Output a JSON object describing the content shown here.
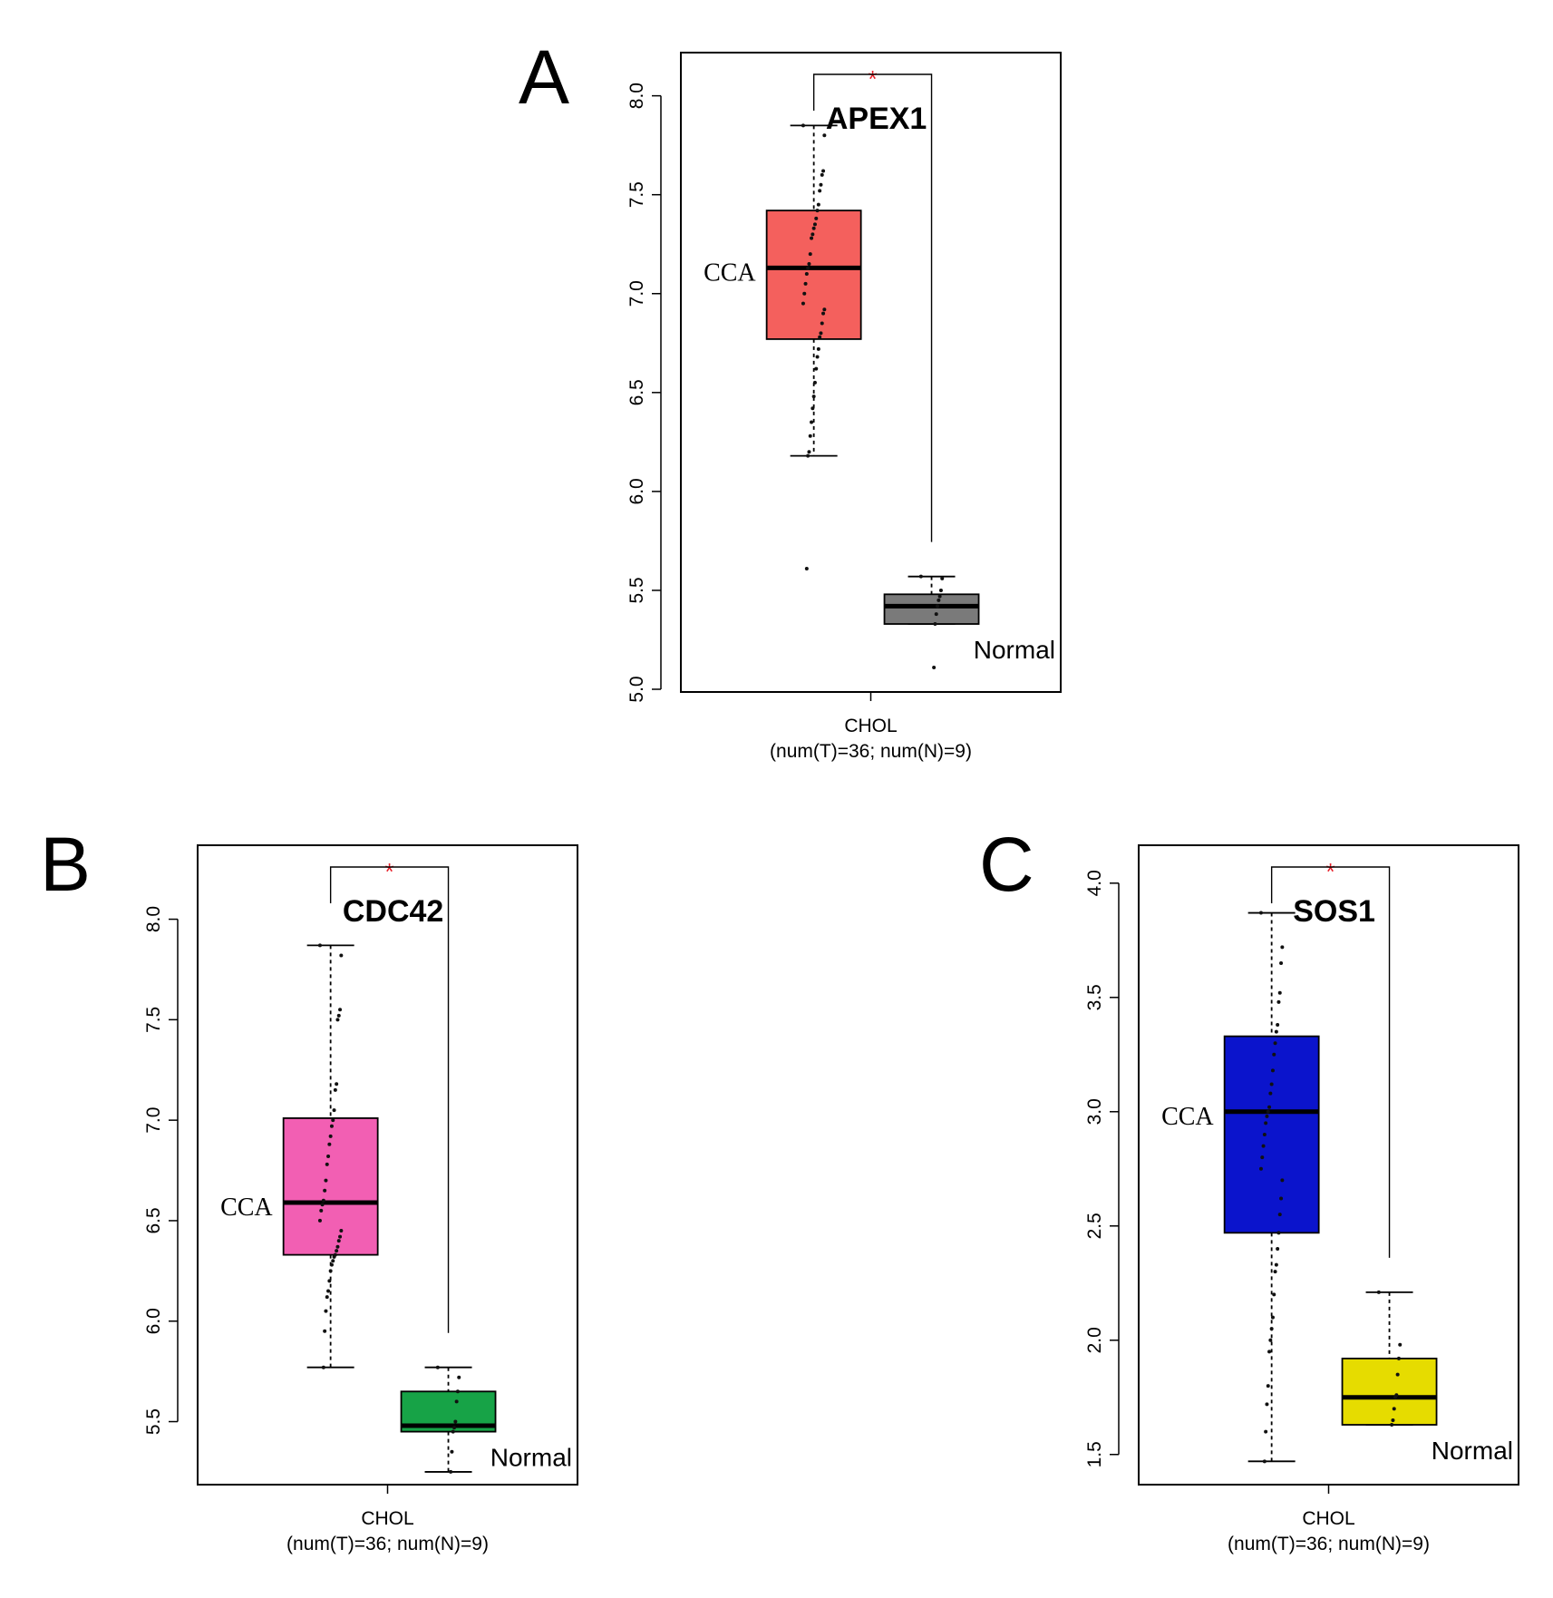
{
  "chart_data": [
    {
      "type": "boxplot",
      "panel_label": "A",
      "title": "APEX1",
      "significance": "*",
      "xlabel": "CHOL",
      "xlabel_sub": "(num(T)=36; num(N)=9)",
      "ylim": [
        5.0,
        8.2
      ],
      "yticks": [
        5.0,
        5.5,
        6.0,
        6.5,
        7.0,
        7.5,
        8.0
      ],
      "series": [
        {
          "name": "CCA",
          "color": "#f4605d",
          "min": 6.18,
          "q1": 6.77,
          "median": 7.13,
          "q3": 7.42,
          "max": 7.85,
          "points": [
            7.85,
            7.8,
            7.62,
            7.6,
            7.55,
            7.52,
            7.45,
            7.42,
            7.38,
            7.35,
            7.33,
            7.3,
            7.28,
            7.2,
            7.15,
            7.13,
            7.1,
            7.05,
            7.0,
            6.95,
            6.92,
            6.9,
            6.85,
            6.8,
            6.78,
            6.72,
            6.68,
            6.62,
            6.55,
            6.48,
            6.42,
            6.35,
            6.28,
            6.2,
            6.18,
            5.61
          ]
        },
        {
          "name": "Normal",
          "color": "#7a7a7a",
          "min": 5.33,
          "q1": 5.33,
          "median": 5.42,
          "q3": 5.48,
          "max": 5.57,
          "points": [
            5.57,
            5.56,
            5.5,
            5.47,
            5.45,
            5.42,
            5.38,
            5.33,
            5.11
          ]
        }
      ]
    },
    {
      "type": "boxplot",
      "panel_label": "B",
      "title": "CDC42",
      "significance": "*",
      "xlabel": "CHOL",
      "xlabel_sub": "(num(T)=36; num(N)=9)",
      "ylim": [
        5.2,
        8.35
      ],
      "yticks": [
        5.5,
        6.0,
        6.5,
        7.0,
        7.5,
        8.0
      ],
      "series": [
        {
          "name": "CCA",
          "color": "#f25fb3",
          "min": 5.77,
          "q1": 6.33,
          "median": 6.59,
          "q3": 7.01,
          "max": 7.87,
          "points": [
            7.87,
            7.82,
            7.55,
            7.52,
            7.5,
            7.18,
            7.15,
            7.05,
            7.0,
            6.97,
            6.92,
            6.88,
            6.82,
            6.78,
            6.7,
            6.65,
            6.6,
            6.58,
            6.55,
            6.5,
            6.45,
            6.42,
            6.4,
            6.37,
            6.35,
            6.33,
            6.32,
            6.3,
            6.28,
            6.25,
            6.2,
            6.15,
            6.12,
            6.05,
            5.95,
            5.77
          ]
        },
        {
          "name": "Normal",
          "color": "#17a347",
          "min": 5.25,
          "q1": 5.45,
          "median": 5.48,
          "q3": 5.65,
          "max": 5.77,
          "points": [
            5.77,
            5.72,
            5.65,
            5.6,
            5.5,
            5.47,
            5.45,
            5.35,
            5.25
          ]
        }
      ]
    },
    {
      "type": "boxplot",
      "panel_label": "C",
      "title": "SOS1",
      "significance": "*",
      "xlabel": "CHOL",
      "xlabel_sub": "(num(T)=36; num(N)=9)",
      "ylim": [
        1.38,
        4.15
      ],
      "yticks": [
        1.5,
        2.0,
        2.5,
        3.0,
        3.5,
        4.0
      ],
      "series": [
        {
          "name": "CCA",
          "color": "#0b14cc",
          "min": 1.47,
          "q1": 2.47,
          "median": 3.0,
          "q3": 3.33,
          "max": 3.87,
          "points": [
            3.87,
            3.72,
            3.65,
            3.52,
            3.48,
            3.38,
            3.35,
            3.3,
            3.25,
            3.18,
            3.12,
            3.08,
            3.02,
            3.0,
            2.98,
            2.95,
            2.9,
            2.85,
            2.8,
            2.75,
            2.7,
            2.62,
            2.55,
            2.47,
            2.4,
            2.33,
            2.3,
            2.2,
            2.1,
            2.05,
            2.0,
            1.95,
            1.8,
            1.72,
            1.6,
            1.47
          ]
        },
        {
          "name": "Normal",
          "color": "#e6dc00",
          "min": 1.63,
          "q1": 1.63,
          "median": 1.75,
          "q3": 1.92,
          "max": 2.21,
          "points": [
            2.21,
            1.98,
            1.92,
            1.85,
            1.76,
            1.75,
            1.7,
            1.65,
            1.63
          ]
        }
      ]
    }
  ]
}
